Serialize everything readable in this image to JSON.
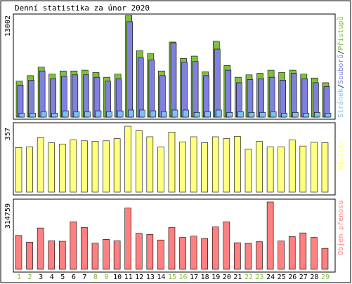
{
  "chart_data": [
    {
      "type": "bar",
      "title": "Denní statistika za únor 2020",
      "ymax_label": "13002",
      "ylim": [
        0,
        13002
      ],
      "legend": [
        "Stránek",
        "Souborů",
        "Přístupů"
      ],
      "legend_separator": "/",
      "legend_placement": "right",
      "categories": [
        "1",
        "2",
        "3",
        "4",
        "5",
        "6",
        "7",
        "8",
        "9",
        "10",
        "11",
        "12",
        "13",
        "14",
        "15",
        "16",
        "17",
        "18",
        "19",
        "20",
        "21",
        "22",
        "23",
        "24",
        "25",
        "26",
        "27",
        "28",
        "29"
      ],
      "weekend_days": [
        "1",
        "2",
        "8",
        "9",
        "15",
        "16",
        "22",
        "23",
        "29"
      ],
      "series": [
        {
          "name": "Přístupů",
          "color": "#80c040",
          "values": [
            4600,
            5300,
            6400,
            5500,
            5900,
            5900,
            6000,
            5700,
            5100,
            5500,
            13002,
            8500,
            8100,
            5900,
            9600,
            7500,
            7800,
            5800,
            9700,
            6600,
            5100,
            5400,
            5600,
            6000,
            5700,
            6000,
            5500,
            5000,
            4400
          ]
        },
        {
          "name": "Souborů",
          "color": "#8080e0",
          "values": [
            4100,
            4700,
            5900,
            4900,
            5200,
            5400,
            5400,
            5100,
            4600,
            4900,
            12200,
            7600,
            7300,
            5300,
            9500,
            7000,
            7100,
            5300,
            8700,
            6000,
            4400,
            4800,
            4900,
            5100,
            4700,
            5600,
            4900,
            4400,
            3900
          ]
        },
        {
          "name": "Stránek",
          "color": "#80c0f0",
          "values": [
            500,
            500,
            700,
            500,
            800,
            700,
            700,
            800,
            700,
            800,
            900,
            900,
            800,
            700,
            900,
            900,
            600,
            700,
            900,
            600,
            700,
            600,
            600,
            700,
            500,
            600,
            500,
            600,
            500
          ]
        }
      ]
    },
    {
      "type": "bar",
      "ymax_label": "357",
      "ylim": [
        0,
        357
      ],
      "legend": [
        "Návštěv"
      ],
      "legend_placement": "right",
      "categories": [
        "1",
        "2",
        "3",
        "4",
        "5",
        "6",
        "7",
        "8",
        "9",
        "10",
        "11",
        "12",
        "13",
        "14",
        "15",
        "16",
        "17",
        "18",
        "19",
        "20",
        "21",
        "22",
        "23",
        "24",
        "25",
        "26",
        "27",
        "28",
        "29"
      ],
      "series": [
        {
          "name": "Návštěv",
          "color": "#ffff80",
          "values": [
            242,
            245,
            295,
            267,
            260,
            283,
            278,
            275,
            278,
            290,
            357,
            333,
            300,
            244,
            325,
            272,
            300,
            268,
            300,
            290,
            302,
            232,
            275,
            245,
            245,
            282,
            250,
            270,
            268
          ]
        }
      ]
    },
    {
      "type": "bar",
      "ymax_label": "314759",
      "ylim": [
        0,
        314759
      ],
      "legend": [
        "Objem přenosu"
      ],
      "legend_placement": "right",
      "categories": [
        "1",
        "2",
        "3",
        "4",
        "5",
        "6",
        "7",
        "8",
        "9",
        "10",
        "11",
        "12",
        "13",
        "14",
        "15",
        "16",
        "17",
        "18",
        "19",
        "20",
        "21",
        "22",
        "23",
        "24",
        "25",
        "26",
        "27",
        "28",
        "29"
      ],
      "series": [
        {
          "name": "Objem přenosu",
          "color": "#ff8080",
          "values": [
            158000,
            127000,
            193000,
            133000,
            131000,
            222000,
            196000,
            122000,
            140000,
            133000,
            286000,
            168000,
            163000,
            137000,
            195000,
            149000,
            155000,
            144000,
            198000,
            222000,
            124000,
            121000,
            129000,
            314759,
            132000,
            153000,
            170000,
            149000,
            98000
          ]
        }
      ]
    }
  ],
  "colors": {
    "weekday_label": "#000000",
    "weekend_label": "#80c040",
    "legend_pages": "#80c0f0",
    "legend_files": "#8080e0",
    "legend_hits": "#80c040",
    "legend_visits": "#ffff80",
    "legend_volume": "#ff8080"
  }
}
